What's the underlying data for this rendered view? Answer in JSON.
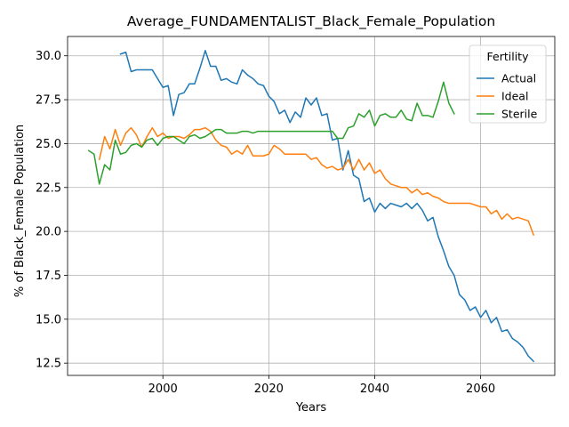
{
  "chart_data": {
    "type": "line",
    "title": "Average_FUNDAMENTALIST_Black_Female_Population",
    "xlabel": "Years",
    "ylabel": "% of Black_Female Population",
    "xlim": [
      1982,
      2074
    ],
    "ylim": [
      11.8,
      31.1
    ],
    "xticks": [
      2000,
      2020,
      2040,
      2060
    ],
    "yticks": [
      12.5,
      15.0,
      17.5,
      20.0,
      22.5,
      25.0,
      27.5,
      30.0
    ],
    "ytick_labels": [
      "12.5",
      "15.0",
      "17.5",
      "20.0",
      "22.5",
      "25.0",
      "27.5",
      "30.0"
    ],
    "grid": true,
    "legend": {
      "title": "Fertility",
      "position": "top-right"
    },
    "series": [
      {
        "name": "Actual",
        "color": "#1f77b4",
        "x": [
          1992,
          1993,
          1994,
          1995,
          1996,
          1997,
          1998,
          1999,
          2000,
          2001,
          2002,
          2003,
          2004,
          2005,
          2006,
          2007,
          2008,
          2009,
          2010,
          2011,
          2012,
          2013,
          2014,
          2015,
          2016,
          2017,
          2018,
          2019,
          2020,
          2021,
          2022,
          2023,
          2024,
          2025,
          2026,
          2027,
          2028,
          2029,
          2030,
          2031,
          2032,
          2033,
          2034,
          2035,
          2036,
          2037,
          2038,
          2039,
          2040,
          2041,
          2042,
          2043,
          2044,
          2045,
          2046,
          2047,
          2048,
          2049,
          2050,
          2051,
          2052,
          2053,
          2054,
          2055,
          2056,
          2057,
          2058,
          2059,
          2060,
          2061,
          2062,
          2063,
          2064,
          2065,
          2066,
          2067,
          2068,
          2069,
          2070
        ],
        "y": [
          30.1,
          30.2,
          29.1,
          29.2,
          29.2,
          29.2,
          29.2,
          28.7,
          28.2,
          28.3,
          26.6,
          27.8,
          27.9,
          28.4,
          28.4,
          29.3,
          30.3,
          29.4,
          29.4,
          28.6,
          28.7,
          28.5,
          28.4,
          29.2,
          28.9,
          28.7,
          28.4,
          28.3,
          27.7,
          27.4,
          26.7,
          26.9,
          26.2,
          26.8,
          26.5,
          27.6,
          27.2,
          27.6,
          26.6,
          26.7,
          25.2,
          25.3,
          23.5,
          24.6,
          23.2,
          23.0,
          21.7,
          21.9,
          21.1,
          21.6,
          21.3,
          21.6,
          21.5,
          21.4,
          21.6,
          21.3,
          21.6,
          21.2,
          20.6,
          20.8,
          19.7,
          18.9,
          18.0,
          17.5,
          16.4,
          16.1,
          15.5,
          15.7,
          15.1,
          15.5,
          14.8,
          15.1,
          14.3,
          14.4,
          13.9,
          13.7,
          13.4,
          12.9,
          12.6
        ]
      },
      {
        "name": "Ideal",
        "color": "#ff7f0e",
        "x": [
          1988,
          1989,
          1990,
          1991,
          1992,
          1993,
          1994,
          1995,
          1996,
          1997,
          1998,
          1999,
          2000,
          2001,
          2002,
          2003,
          2004,
          2005,
          2006,
          2007,
          2008,
          2009,
          2010,
          2011,
          2012,
          2013,
          2014,
          2015,
          2016,
          2017,
          2018,
          2019,
          2020,
          2021,
          2022,
          2023,
          2024,
          2025,
          2026,
          2027,
          2028,
          2029,
          2030,
          2031,
          2032,
          2033,
          2034,
          2035,
          2036,
          2037,
          2038,
          2039,
          2040,
          2041,
          2042,
          2043,
          2044,
          2045,
          2046,
          2047,
          2048,
          2049,
          2050,
          2051,
          2052,
          2053,
          2054,
          2055,
          2056,
          2057,
          2058,
          2059,
          2060,
          2061,
          2062,
          2063,
          2064,
          2065,
          2066,
          2067,
          2068,
          2069,
          2070
        ],
        "y": [
          24.1,
          25.4,
          24.7,
          25.8,
          24.9,
          25.6,
          25.9,
          25.5,
          24.8,
          25.4,
          25.9,
          25.4,
          25.6,
          25.3,
          25.4,
          25.4,
          25.3,
          25.5,
          25.8,
          25.8,
          25.9,
          25.7,
          25.2,
          24.9,
          24.8,
          24.4,
          24.6,
          24.4,
          24.9,
          24.3,
          24.3,
          24.3,
          24.4,
          24.9,
          24.7,
          24.4,
          24.4,
          24.4,
          24.4,
          24.4,
          24.1,
          24.2,
          23.8,
          23.6,
          23.7,
          23.5,
          23.6,
          24.1,
          23.5,
          24.1,
          23.5,
          23.9,
          23.3,
          23.5,
          23.0,
          22.7,
          22.6,
          22.5,
          22.5,
          22.2,
          22.4,
          22.1,
          22.2,
          22.0,
          21.9,
          21.7,
          21.6,
          21.6,
          21.6,
          21.6,
          21.6,
          21.5,
          21.4,
          21.4,
          21.0,
          21.2,
          20.7,
          21.0,
          20.7,
          20.8,
          20.7,
          20.6,
          19.8
        ]
      },
      {
        "name": "Sterile",
        "color": "#2ca02c",
        "x": [
          1986,
          1987,
          1988,
          1989,
          1990,
          1991,
          1992,
          1993,
          1994,
          1995,
          1996,
          1997,
          1998,
          1999,
          2000,
          2001,
          2002,
          2003,
          2004,
          2005,
          2006,
          2007,
          2008,
          2009,
          2010,
          2011,
          2012,
          2013,
          2014,
          2015,
          2016,
          2017,
          2018,
          2019,
          2020,
          2021,
          2022,
          2023,
          2024,
          2025,
          2026,
          2027,
          2028,
          2029,
          2030,
          2031,
          2032,
          2033,
          2034,
          2035,
          2036,
          2037,
          2038,
          2039,
          2040,
          2041,
          2042,
          2043,
          2044,
          2045,
          2046,
          2047,
          2048,
          2049,
          2050,
          2051,
          2052,
          2053,
          2054,
          2055
        ],
        "y": [
          24.6,
          24.4,
          22.7,
          23.8,
          23.5,
          25.2,
          24.4,
          24.5,
          24.9,
          25.0,
          24.8,
          25.2,
          25.3,
          24.9,
          25.3,
          25.4,
          25.4,
          25.2,
          25.0,
          25.4,
          25.5,
          25.3,
          25.4,
          25.6,
          25.8,
          25.8,
          25.6,
          25.6,
          25.6,
          25.7,
          25.7,
          25.6,
          25.7,
          25.7,
          25.7,
          25.7,
          25.7,
          25.7,
          25.7,
          25.7,
          25.7,
          25.7,
          25.7,
          25.7,
          25.7,
          25.7,
          25.7,
          25.3,
          25.3,
          25.9,
          26.0,
          26.7,
          26.5,
          26.9,
          26.0,
          26.6,
          26.7,
          26.5,
          26.5,
          26.9,
          26.4,
          26.3,
          27.3,
          26.6,
          26.6,
          26.5,
          27.4,
          28.5,
          27.3,
          26.7
        ]
      }
    ]
  }
}
